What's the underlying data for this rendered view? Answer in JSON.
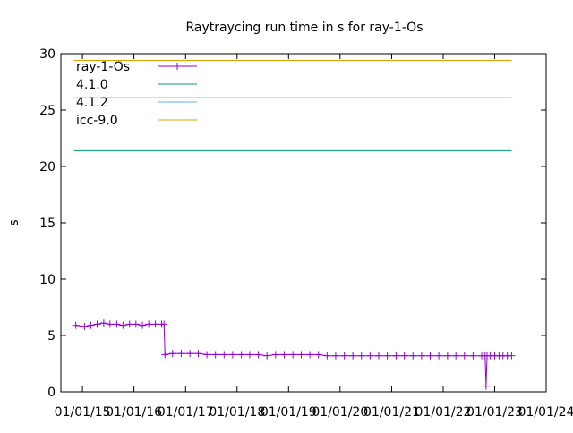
{
  "chart_data": {
    "type": "line",
    "title": "Raytraycing run time in s for ray-1-Os",
    "xlabel": "",
    "ylabel": "s",
    "ylim": [
      0,
      30
    ],
    "xlim": [
      "2014-08-01",
      "2024-01-01"
    ],
    "grid": false,
    "legend_position": "top-left",
    "y_ticks": [
      0,
      5,
      10,
      15,
      20,
      25,
      30
    ],
    "x_ticks": [
      {
        "date": "2015-01-01",
        "label": "01/01/15"
      },
      {
        "date": "2016-01-01",
        "label": "01/01/16"
      },
      {
        "date": "2017-01-01",
        "label": "01/01/17"
      },
      {
        "date": "2018-01-01",
        "label": "01/01/18"
      },
      {
        "date": "2019-01-01",
        "label": "01/01/19"
      },
      {
        "date": "2020-01-01",
        "label": "01/01/20"
      },
      {
        "date": "2021-01-01",
        "label": "01/01/21"
      },
      {
        "date": "2022-01-01",
        "label": "01/01/22"
      },
      {
        "date": "2023-01-01",
        "label": "01/01/23"
      },
      {
        "date": "2024-01-01",
        "label": "01/01/24"
      }
    ],
    "series": [
      {
        "name": "ray-1-Os",
        "color": "#9400d3",
        "style": "linespoints",
        "points": [
          [
            "2014-11-15",
            5.9
          ],
          [
            "2015-01-15",
            5.8
          ],
          [
            "2015-03-01",
            5.9
          ],
          [
            "2015-04-15",
            6.0
          ],
          [
            "2015-06-01",
            6.1
          ],
          [
            "2015-07-15",
            6.0
          ],
          [
            "2015-09-01",
            6.0
          ],
          [
            "2015-10-15",
            5.9
          ],
          [
            "2015-12-01",
            6.0
          ],
          [
            "2016-01-15",
            6.0
          ],
          [
            "2016-03-01",
            5.9
          ],
          [
            "2016-04-15",
            6.0
          ],
          [
            "2016-06-01",
            6.0
          ],
          [
            "2016-07-15",
            6.0
          ],
          [
            "2016-08-01",
            6.0
          ],
          [
            "2016-08-08",
            3.3
          ],
          [
            "2016-10-01",
            3.4
          ],
          [
            "2016-12-01",
            3.4
          ],
          [
            "2017-02-01",
            3.4
          ],
          [
            "2017-04-01",
            3.4
          ],
          [
            "2017-06-01",
            3.3
          ],
          [
            "2017-08-01",
            3.3
          ],
          [
            "2017-10-01",
            3.3
          ],
          [
            "2017-12-01",
            3.3
          ],
          [
            "2018-02-01",
            3.3
          ],
          [
            "2018-04-01",
            3.3
          ],
          [
            "2018-06-01",
            3.3
          ],
          [
            "2018-08-01",
            3.2
          ],
          [
            "2018-10-01",
            3.3
          ],
          [
            "2018-12-01",
            3.3
          ],
          [
            "2019-02-01",
            3.3
          ],
          [
            "2019-04-01",
            3.3
          ],
          [
            "2019-06-01",
            3.3
          ],
          [
            "2019-08-01",
            3.3
          ],
          [
            "2019-10-01",
            3.2
          ],
          [
            "2019-12-01",
            3.2
          ],
          [
            "2020-02-01",
            3.2
          ],
          [
            "2020-04-01",
            3.2
          ],
          [
            "2020-06-01",
            3.2
          ],
          [
            "2020-08-01",
            3.2
          ],
          [
            "2020-10-01",
            3.2
          ],
          [
            "2020-12-01",
            3.2
          ],
          [
            "2021-02-01",
            3.2
          ],
          [
            "2021-04-01",
            3.2
          ],
          [
            "2021-06-01",
            3.2
          ],
          [
            "2021-08-01",
            3.2
          ],
          [
            "2021-10-01",
            3.2
          ],
          [
            "2021-12-01",
            3.2
          ],
          [
            "2022-02-01",
            3.2
          ],
          [
            "2022-04-01",
            3.2
          ],
          [
            "2022-06-01",
            3.2
          ],
          [
            "2022-08-01",
            3.2
          ],
          [
            "2022-10-01",
            3.2
          ],
          [
            "2022-10-25",
            3.2
          ],
          [
            "2022-11-01",
            0.5
          ],
          [
            "2022-11-08",
            3.2
          ],
          [
            "2022-12-01",
            3.2
          ],
          [
            "2023-01-01",
            3.2
          ],
          [
            "2023-02-01",
            3.2
          ],
          [
            "2023-03-01",
            3.2
          ],
          [
            "2023-04-01",
            3.2
          ],
          [
            "2023-05-01",
            3.2
          ]
        ]
      },
      {
        "name": "4.1.0",
        "color": "#009e73",
        "style": "line",
        "value": 21.4,
        "x_range": [
          "2014-11-01",
          "2023-05-01"
        ]
      },
      {
        "name": "4.1.2",
        "color": "#56b4e9",
        "style": "line",
        "value": 26.1,
        "x_range": [
          "2014-11-01",
          "2023-05-01"
        ]
      },
      {
        "name": "icc-9.0",
        "color": "#e69f00",
        "style": "line",
        "value": 29.4,
        "x_range": [
          "2014-11-01",
          "2023-05-01"
        ]
      }
    ]
  }
}
